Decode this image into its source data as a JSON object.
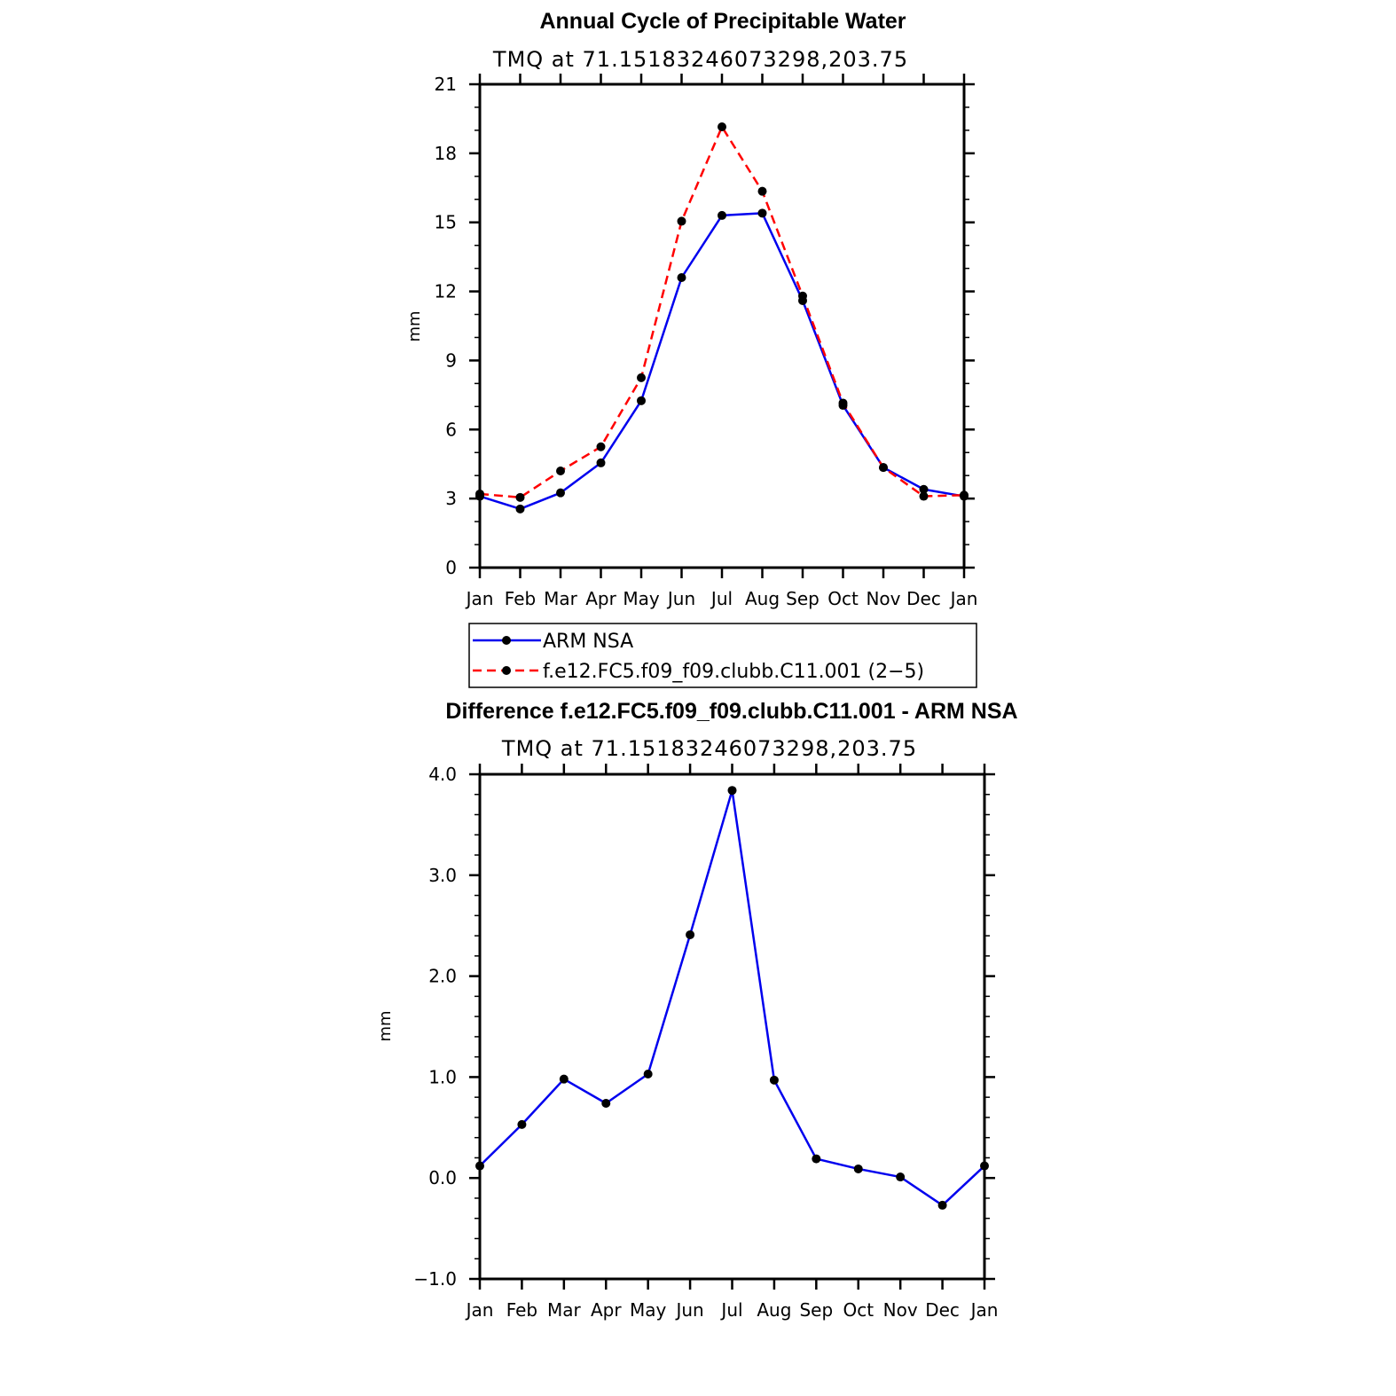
{
  "chart_data": [
    {
      "type": "line",
      "title": "Annual Cycle of Precipitable Water",
      "subtitle": "TMQ  at  71.15183246073298,203.75",
      "xlabel": "",
      "ylabel": "mm",
      "categories": [
        "Jan",
        "Feb",
        "Mar",
        "Apr",
        "May",
        "Jun",
        "Jul",
        "Aug",
        "Sep",
        "Oct",
        "Nov",
        "Dec",
        "Jan"
      ],
      "ylim": [
        0,
        21
      ],
      "yticks": [
        0,
        3,
        6,
        9,
        12,
        15,
        18,
        21
      ],
      "ytick_labels": [
        "0",
        "3",
        "6",
        "9",
        "12",
        "15",
        "18",
        "21"
      ],
      "series": [
        {
          "name": "ARM NSA",
          "color": "#0000ee",
          "dash": "solid",
          "values": [
            3.1,
            2.55,
            3.25,
            4.55,
            7.25,
            12.6,
            15.3,
            15.4,
            11.6,
            7.05,
            4.35,
            3.4,
            3.1
          ]
        },
        {
          "name": "f.e12.FC5.f09_f09.clubb.C11.001 (2−5)",
          "color": "#ff0000",
          "dash": "dashed",
          "values": [
            3.2,
            3.05,
            4.2,
            5.25,
            8.25,
            15.05,
            19.15,
            16.35,
            11.8,
            7.15,
            4.35,
            3.1,
            3.15
          ]
        }
      ],
      "legend": [
        "ARM NSA",
        "f.e12.FC5.f09_f09.clubb.C11.001 (2−5)"
      ]
    },
    {
      "type": "line",
      "title": "Difference f.e12.FC5.f09_f09.clubb.C11.001 - ARM NSA",
      "subtitle": "TMQ  at  71.15183246073298,203.75",
      "xlabel": "",
      "ylabel": "mm",
      "categories": [
        "Jan",
        "Feb",
        "Mar",
        "Apr",
        "May",
        "Jun",
        "Jul",
        "Aug",
        "Sep",
        "Oct",
        "Nov",
        "Dec",
        "Jan"
      ],
      "ylim": [
        -1.0,
        4.0
      ],
      "yticks": [
        -1.0,
        0.0,
        1.0,
        2.0,
        3.0,
        4.0
      ],
      "ytick_labels": [
        "−1.0",
        "0.0",
        "1.0",
        "2.0",
        "3.0",
        "4.0"
      ],
      "series": [
        {
          "name": "Difference",
          "color": "#0000ee",
          "dash": "solid",
          "values": [
            0.12,
            0.53,
            0.98,
            0.74,
            1.03,
            2.41,
            3.84,
            0.97,
            0.19,
            0.09,
            0.01,
            -0.27,
            0.12
          ]
        }
      ]
    }
  ]
}
